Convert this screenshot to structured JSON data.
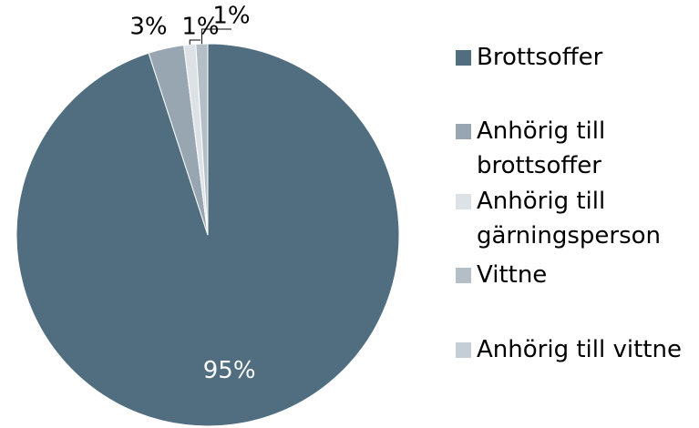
{
  "chart_data": {
    "type": "pie",
    "categories": [
      "Brottsoffer",
      "Anhörig till brottsoffer",
      "Anhörig till gärningsperson",
      "Vittne",
      "Anhörig till vittne"
    ],
    "values": [
      95,
      3,
      1,
      1,
      0
    ],
    "value_labels": [
      "95%",
      "3%",
      "1%",
      "1%",
      null
    ],
    "colors": [
      "#516e80",
      "#97a6b0",
      "#dde2e6",
      "#b3bec6",
      "#c5ced5"
    ],
    "legend": "right"
  }
}
